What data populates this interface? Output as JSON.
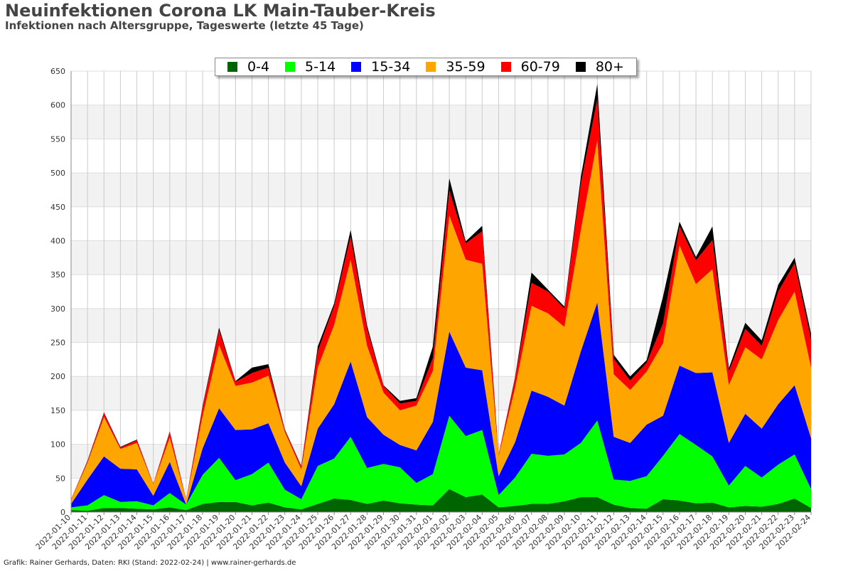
{
  "header": {
    "title": "Neuinfektionen Corona LK Main-Tauber-Kreis",
    "subtitle": "Infektionen nach Altersgruppe, Tageswerte (letzte 45 Tage)"
  },
  "footer": {
    "credit": "Grafik: Rainer Gerhards, Daten: RKI (Stand: 2022-02-24) | www.rainer-gerhards.de"
  },
  "chart_data": {
    "type": "area",
    "stacked": true,
    "title": "Neuinfektionen Corona LK Main-Tauber-Kreis",
    "subtitle": "Infektionen nach Altersgruppe, Tageswerte (letzte 45 Tage)",
    "xlabel": "",
    "ylabel": "",
    "ylim": [
      0,
      650
    ],
    "yticks": [
      0,
      50,
      100,
      150,
      200,
      250,
      300,
      350,
      400,
      450,
      500,
      550,
      600,
      650
    ],
    "grid": true,
    "legend_position": "top-center",
    "x": [
      "2022-01-10",
      "2022-01-11",
      "2022-01-12",
      "2022-01-13",
      "2022-01-14",
      "2022-01-15",
      "2022-01-16",
      "2022-01-17",
      "2022-01-18",
      "2022-01-19",
      "2022-01-20",
      "2022-01-21",
      "2022-01-22",
      "2022-01-23",
      "2022-01-24",
      "2022-01-25",
      "2022-01-26",
      "2022-01-27",
      "2022-01-28",
      "2022-01-29",
      "2022-01-30",
      "2022-01-31",
      "2022-02-01",
      "2022-02-02",
      "2022-02-03",
      "2022-02-04",
      "2022-02-05",
      "2022-02-06",
      "2022-02-07",
      "2022-02-08",
      "2022-02-09",
      "2022-02-10",
      "2022-02-11",
      "2022-02-12",
      "2022-02-13",
      "2022-02-14",
      "2022-02-15",
      "2022-02-16",
      "2022-02-17",
      "2022-02-18",
      "2022-02-19",
      "2022-02-20",
      "2022-02-21",
      "2022-02-22",
      "2022-02-23",
      "2022-02-24"
    ],
    "series": [
      {
        "name": "0-4",
        "color": "#006400",
        "values": [
          3,
          2,
          6,
          6,
          5,
          4,
          7,
          3,
          12,
          15,
          15,
          10,
          14,
          7,
          4,
          12,
          20,
          18,
          12,
          17,
          13,
          11,
          10,
          34,
          22,
          26,
          7,
          9,
          12,
          12,
          16,
          22,
          22,
          11,
          6,
          5,
          19,
          17,
          13,
          14,
          7,
          9,
          8,
          12,
          20,
          6
        ]
      },
      {
        "name": "5-14",
        "color": "#00ff00",
        "values": [
          4,
          8,
          19,
          9,
          11,
          6,
          21,
          8,
          43,
          65,
          32,
          46,
          59,
          26,
          15,
          56,
          59,
          93,
          53,
          54,
          53,
          32,
          46,
          108,
          90,
          95,
          18,
          42,
          74,
          71,
          69,
          80,
          113,
          37,
          40,
          48,
          64,
          98,
          86,
          68,
          32,
          59,
          43,
          58,
          65,
          28
        ]
      },
      {
        "name": "15-34",
        "color": "#0000ff",
        "values": [
          5,
          38,
          57,
          49,
          47,
          14,
          46,
          0,
          39,
          73,
          74,
          66,
          58,
          40,
          19,
          55,
          80,
          111,
          75,
          43,
          33,
          48,
          77,
          124,
          101,
          88,
          28,
          52,
          93,
          87,
          72,
          135,
          174,
          63,
          56,
          76,
          59,
          101,
          106,
          124,
          63,
          77,
          72,
          89,
          102,
          75
        ]
      },
      {
        "name": "35-59",
        "color": "#ffa500",
        "values": [
          6,
          25,
          58,
          29,
          39,
          17,
          36,
          7,
          48,
          93,
          65,
          69,
          70,
          45,
          25,
          90,
          117,
          150,
          105,
          62,
          51,
          66,
          75,
          171,
          159,
          157,
          30,
          80,
          125,
          123,
          116,
          179,
          239,
          92,
          78,
          78,
          107,
          177,
          131,
          152,
          85,
          98,
          102,
          124,
          138,
          104
        ]
      },
      {
        "name": "60-79",
        "color": "#ff0000",
        "values": [
          1,
          2,
          6,
          2,
          4,
          1,
          8,
          1,
          13,
          22,
          6,
          14,
          12,
          3,
          4,
          24,
          28,
          34,
          25,
          10,
          10,
          7,
          19,
          37,
          24,
          48,
          2,
          14,
          34,
          32,
          27,
          68,
          61,
          23,
          14,
          13,
          29,
          28,
          35,
          43,
          20,
          27,
          20,
          42,
          42,
          41
        ]
      },
      {
        "name": "80+",
        "color": "#000000",
        "values": [
          0,
          1,
          1,
          1,
          1,
          0,
          1,
          0,
          2,
          4,
          1,
          8,
          5,
          1,
          1,
          7,
          4,
          10,
          5,
          1,
          4,
          4,
          17,
          18,
          3,
          8,
          0,
          2,
          15,
          3,
          3,
          10,
          22,
          6,
          6,
          4,
          40,
          7,
          5,
          20,
          5,
          9,
          8,
          10,
          8,
          9
        ]
      }
    ]
  }
}
